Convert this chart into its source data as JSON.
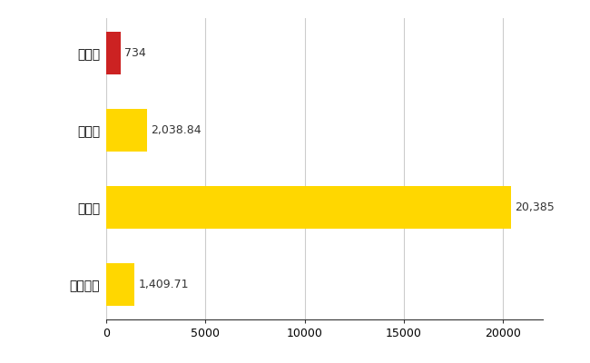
{
  "categories": [
    "全国平均",
    "県最大",
    "県平均",
    "播磨町"
  ],
  "values": [
    1409.71,
    20385,
    2038.84,
    734
  ],
  "colors": [
    "#FFD700",
    "#FFD700",
    "#FFD700",
    "#CC2222"
  ],
  "labels": [
    "1,409.71",
    "20,385",
    "2,038.84",
    "734"
  ],
  "xlim": [
    0,
    22000
  ],
  "xticks": [
    0,
    5000,
    10000,
    15000,
    20000
  ],
  "xtick_labels": [
    "0",
    "5000",
    "10000",
    "15000",
    "20000"
  ],
  "background_color": "#FFFFFF",
  "grid_color": "#CCCCCC",
  "bar_height": 0.55,
  "label_fontsize": 9,
  "tick_fontsize": 9,
  "ytick_fontsize": 10
}
